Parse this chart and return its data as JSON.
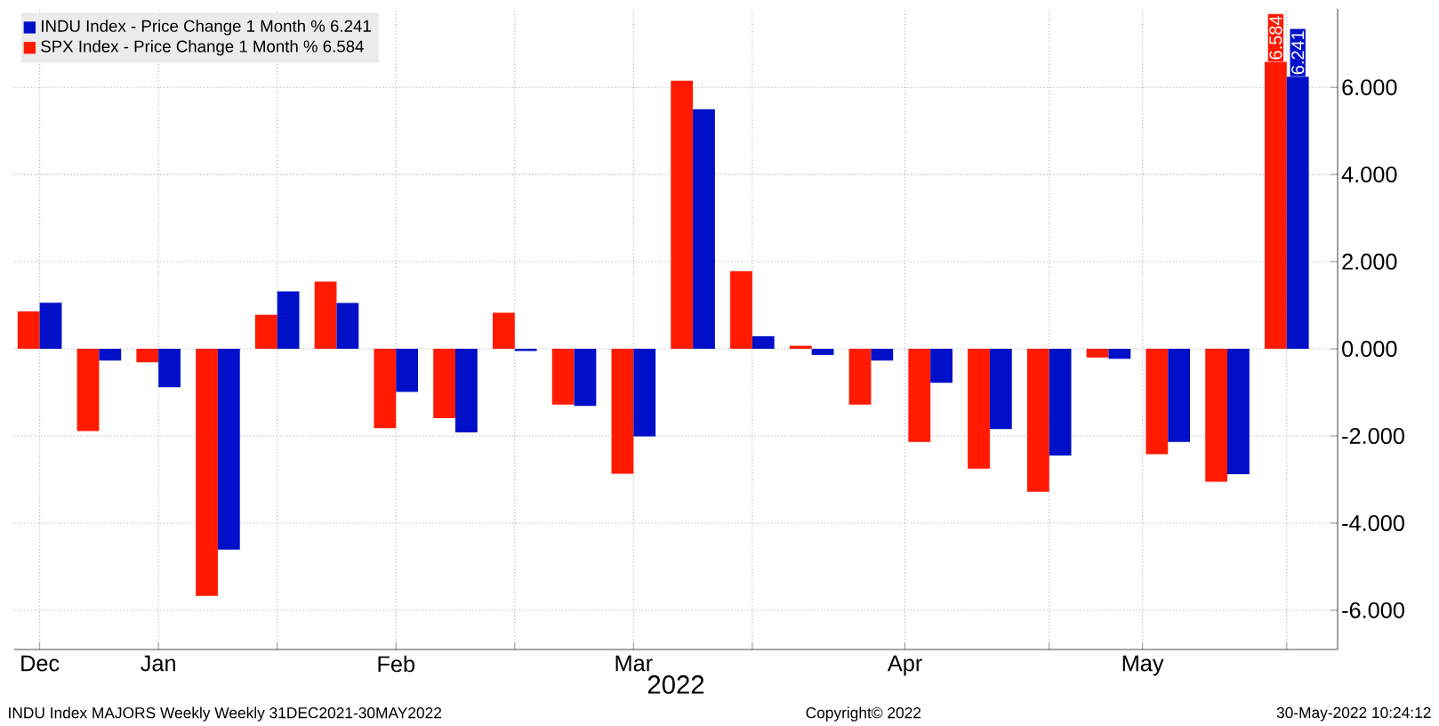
{
  "chart_data": {
    "type": "bar",
    "x": [
      "2021-12-31",
      "2022-01-07",
      "2022-01-14",
      "2022-01-21",
      "2022-01-28",
      "2022-02-04",
      "2022-02-11",
      "2022-02-18",
      "2022-02-25",
      "2022-03-04",
      "2022-03-11",
      "2022-03-18",
      "2022-03-25",
      "2022-04-01",
      "2022-04-08",
      "2022-04-15",
      "2022-04-22",
      "2022-04-29",
      "2022-05-06",
      "2022-05-13",
      "2022-05-20",
      "2022-05-27"
    ],
    "series": [
      {
        "name": "SPX Index - Price Change 1 Month %   6.584",
        "color": "#ff1a00",
        "values": [
          0.86,
          -1.89,
          -0.31,
          -5.67,
          0.78,
          1.54,
          -1.82,
          -1.59,
          0.83,
          -1.28,
          -2.87,
          6.15,
          1.78,
          0.07,
          -1.28,
          -2.14,
          -2.75,
          -3.28,
          -0.2,
          -2.42,
          -3.05,
          6.584
        ],
        "value_labels": [
          null,
          null,
          null,
          null,
          null,
          null,
          null,
          null,
          null,
          null,
          null,
          null,
          null,
          null,
          null,
          null,
          null,
          null,
          null,
          null,
          null,
          "6.584"
        ]
      },
      {
        "name": "INDU Index - Price Change 1 Month % 6.241",
        "color": "#0010c8",
        "values": [
          1.06,
          -0.27,
          -0.88,
          -4.61,
          1.32,
          1.05,
          -0.99,
          -1.92,
          -0.05,
          -1.31,
          -2.01,
          5.5,
          0.29,
          -0.14,
          -0.27,
          -0.78,
          -1.84,
          -2.45,
          -0.23,
          -2.14,
          -2.88,
          6.241
        ],
        "value_labels": [
          null,
          null,
          null,
          null,
          null,
          null,
          null,
          null,
          null,
          null,
          null,
          null,
          null,
          null,
          null,
          null,
          null,
          null,
          null,
          null,
          null,
          "6.241"
        ]
      }
    ],
    "xlabel": "2022",
    "xlim": [
      "2021-12-28",
      "2022-06-02"
    ],
    "xticks": [
      {
        "value": "2021-12-31",
        "label": "Dec"
      },
      {
        "value": "2022-01-14",
        "label": "Jan"
      },
      {
        "value": "2022-01-28",
        "label": null
      },
      {
        "value": "2022-02-11",
        "label": "Feb"
      },
      {
        "value": "2022-02-25",
        "label": null
      },
      {
        "value": "2022-03-11",
        "label": "Mar"
      },
      {
        "value": "2022-03-25",
        "label": null
      },
      {
        "value": "2022-04-12",
        "label": "Apr"
      },
      {
        "value": "2022-04-29",
        "label": null
      },
      {
        "value": "2022-05-10",
        "label": "May"
      },
      {
        "value": "2022-05-27",
        "label": null
      }
    ],
    "ylim": [
      -6.9,
      7.8
    ],
    "yticks": [
      {
        "value": -6,
        "label": "-6.000"
      },
      {
        "value": -4,
        "label": "-4.000"
      },
      {
        "value": -2,
        "label": "-2.000"
      },
      {
        "value": 0,
        "label": "0.000"
      },
      {
        "value": 2,
        "label": "2.000"
      },
      {
        "value": 4,
        "label": "4.000"
      },
      {
        "value": 6,
        "label": "6.000"
      }
    ],
    "grid": true,
    "legend": "top left",
    "annotations": [
      "INDU Index MAJORS Weekly  Weekly 31DEC2021-30MAY2022",
      "Copyright© 2022",
      "30-May-2022 10:24:12"
    ]
  }
}
